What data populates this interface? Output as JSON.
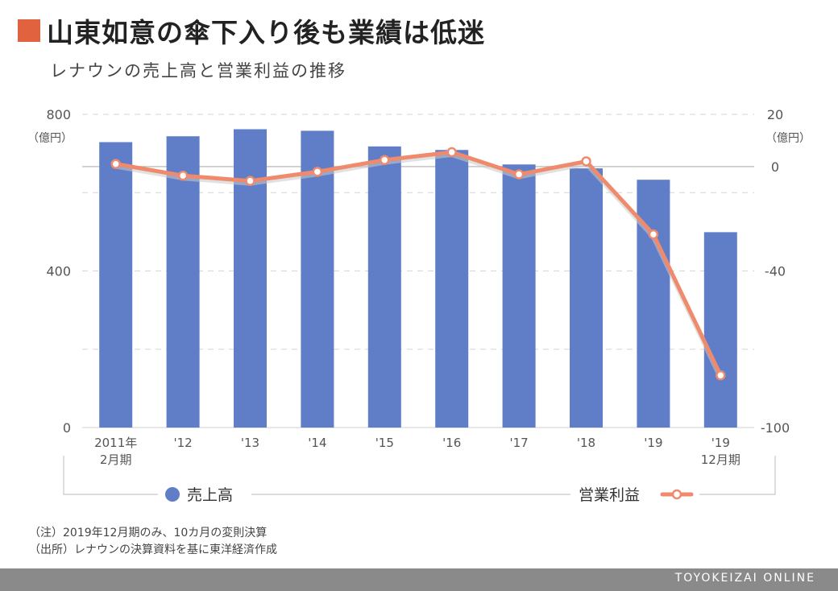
{
  "header": {
    "title": "山東如意の傘下入り後も業績は低迷",
    "subtitle": "レナウンの売上高と営業利益の推移",
    "accent_color": "#e0623e"
  },
  "chart_data": {
    "type": "bar",
    "categories": [
      [
        "2011年",
        "2月期"
      ],
      [
        "'12"
      ],
      [
        "'13"
      ],
      [
        "'14"
      ],
      [
        "'15"
      ],
      [
        "'16"
      ],
      [
        "'17"
      ],
      [
        "'18"
      ],
      [
        "'19"
      ],
      [
        "'19",
        "12月期"
      ]
    ],
    "series": [
      {
        "name": "売上高",
        "type": "bar",
        "axis": "left",
        "color": "#5f7ec7",
        "values": [
          729,
          744,
          762,
          758,
          718,
          709,
          672,
          662,
          633,
          499
        ]
      },
      {
        "name": "営業利益",
        "type": "line",
        "axis": "right",
        "color": "#ef8a6c",
        "values": [
          1.0,
          -3.5,
          -5.5,
          -2.0,
          2.5,
          5.5,
          -3.0,
          2.0,
          -26.0,
          -80.0
        ]
      }
    ],
    "left_axis": {
      "min": 0,
      "max": 800,
      "ticks": [
        "0",
        "400",
        "800"
      ],
      "unit": "（億円）"
    },
    "right_axis": {
      "min": -100,
      "max": 20,
      "ticks": [
        "-100",
        "-40",
        "0",
        "20"
      ],
      "unit": "（億円）"
    },
    "grid": true,
    "legend": {
      "position": "bottom"
    }
  },
  "notes": [
    "（注）2019年12月期のみ、10カ月の変則決算",
    "（出所）レナウンの決算資料を基に東洋経済作成"
  ],
  "footer": {
    "brand": "TOYOKEIZAI ONLINE"
  }
}
